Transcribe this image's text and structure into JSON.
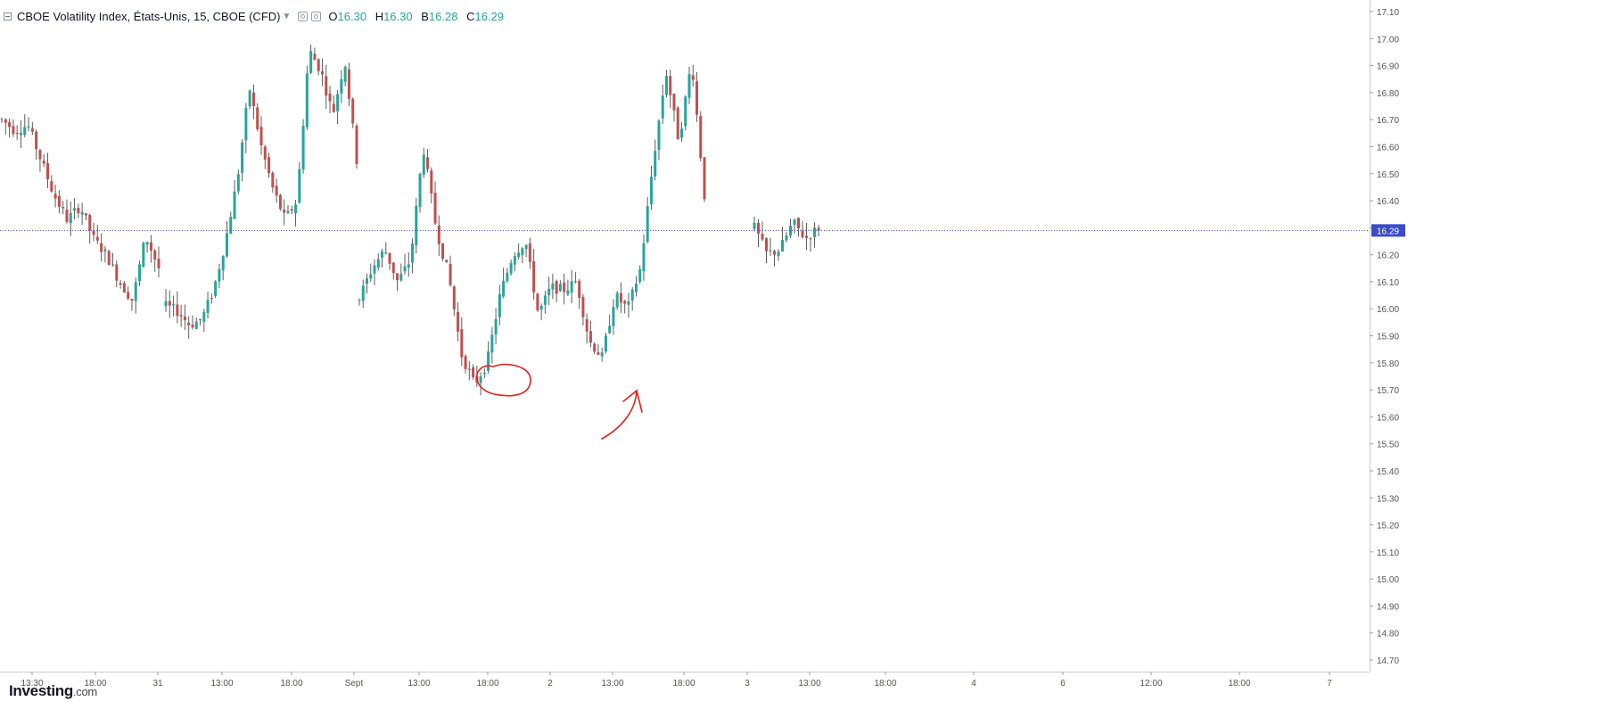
{
  "legend": {
    "title": "CBOE Volatility Index, États-Unis, 15, CBOE (CFD)",
    "open_label": "O",
    "open": "16.30",
    "high_label": "H",
    "high": "16.30",
    "low_label": "B",
    "low": "16.28",
    "close_label": "C",
    "close": "16.29"
  },
  "logo": {
    "brand": "Investing",
    "domain": ".com"
  },
  "colors": {
    "up": "#26a69a",
    "down": "#c0504d",
    "wick": "#5d5d5d",
    "last_price_line": "#3a4cc7",
    "annotation": "#e02020",
    "axis_text": "#555555"
  },
  "chart_data": {
    "type": "candlestick",
    "title": "CBOE Volatility Index, États-Unis, 15, CBOE (CFD)",
    "y_axis": {
      "position": "right",
      "ticks": [
        "17.10",
        "17.00",
        "16.90",
        "16.80",
        "16.70",
        "16.60",
        "16.50",
        "16.40",
        "16.30",
        "16.20",
        "16.10",
        "16.00",
        "15.90",
        "15.80",
        "15.70",
        "15.60",
        "15.50",
        "15.40",
        "15.30",
        "15.20",
        "15.10",
        "15.00",
        "14.90",
        "14.80",
        "14.70"
      ],
      "range": [
        14.66,
        17.12
      ]
    },
    "x_axis": {
      "ticks": [
        "13:30",
        "18:00",
        "31",
        "13:00",
        "18:00",
        "Sept",
        "13:00",
        "18:00",
        "2",
        "13:00",
        "18:00",
        "3",
        "13:00",
        "18:00",
        "4",
        "6",
        "12:00",
        "18:00",
        "7"
      ]
    },
    "last_price": {
      "value": 16.29,
      "label": "16.29"
    },
    "grid": false,
    "sessions": [
      {
        "path": [
          16.7,
          16.66,
          16.68,
          16.55,
          16.42,
          16.33,
          16.38,
          16.26,
          16.2,
          16.1,
          16.03,
          16.27,
          16.15
        ]
      },
      {
        "path": [
          16.01,
          15.99,
          15.94,
          15.96,
          16.07,
          16.25,
          16.48,
          16.82,
          16.6,
          16.44,
          16.33,
          16.4,
          16.96,
          16.88,
          16.72,
          16.92,
          16.55
        ]
      },
      {
        "path": [
          16.04,
          16.15,
          16.22,
          16.1,
          16.18,
          16.6,
          16.3,
          16.12,
          15.83,
          15.72,
          15.8,
          16.05,
          16.2,
          16.25,
          15.98,
          16.08,
          16.07,
          16.1,
          15.88,
          15.82,
          16.05,
          16.0,
          16.15,
          16.55,
          16.88,
          16.62,
          16.92,
          16.42
        ]
      },
      {
        "path": [
          16.3,
          16.2,
          16.22,
          16.32,
          16.26,
          16.3
        ]
      }
    ],
    "annotations": [
      {
        "type": "circle",
        "around_price": 15.74
      },
      {
        "type": "arrow",
        "pointing_to_price": 15.73
      }
    ]
  }
}
